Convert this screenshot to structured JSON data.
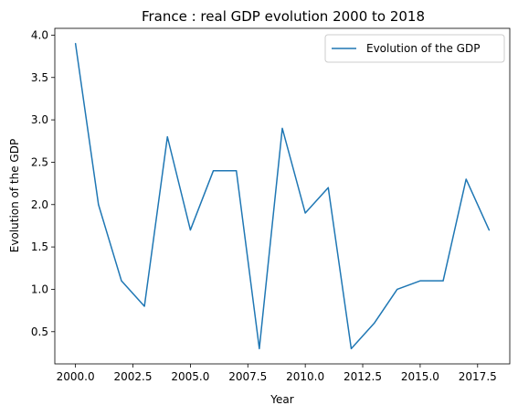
{
  "chart_data": {
    "type": "line",
    "title": "France : real GDP evolution 2000 to 2018",
    "xlabel": "Year",
    "ylabel": "Evolution of the GDP",
    "x": [
      2000,
      2001,
      2002,
      2003,
      2004,
      2005,
      2006,
      2007,
      2008,
      2009,
      2010,
      2011,
      2012,
      2013,
      2014,
      2015,
      2016,
      2017,
      2018
    ],
    "series": [
      {
        "name": "Evolution of the GDP",
        "color": "#1f77b4",
        "values": [
          3.9,
          2.0,
          1.1,
          0.8,
          2.8,
          1.7,
          2.4,
          2.4,
          0.3,
          2.9,
          1.9,
          2.2,
          0.3,
          0.6,
          1.0,
          1.1,
          1.1,
          2.3,
          1.7
        ]
      }
    ],
    "xlim": [
      1999.1,
      2018.9
    ],
    "ylim": [
      0.12,
      4.08
    ],
    "xticks": [
      "2000.0",
      "2002.5",
      "2005.0",
      "2007.5",
      "2010.0",
      "2012.5",
      "2015.0",
      "2017.5"
    ],
    "xtick_values": [
      2000.0,
      2002.5,
      2005.0,
      2007.5,
      2010.0,
      2012.5,
      2015.0,
      2017.5
    ],
    "yticks": [
      "0.5",
      "1.0",
      "1.5",
      "2.0",
      "2.5",
      "3.0",
      "3.5",
      "4.0"
    ],
    "ytick_values": [
      0.5,
      1.0,
      1.5,
      2.0,
      2.5,
      3.0,
      3.5,
      4.0
    ],
    "grid": false,
    "legend_position": "top-right"
  }
}
